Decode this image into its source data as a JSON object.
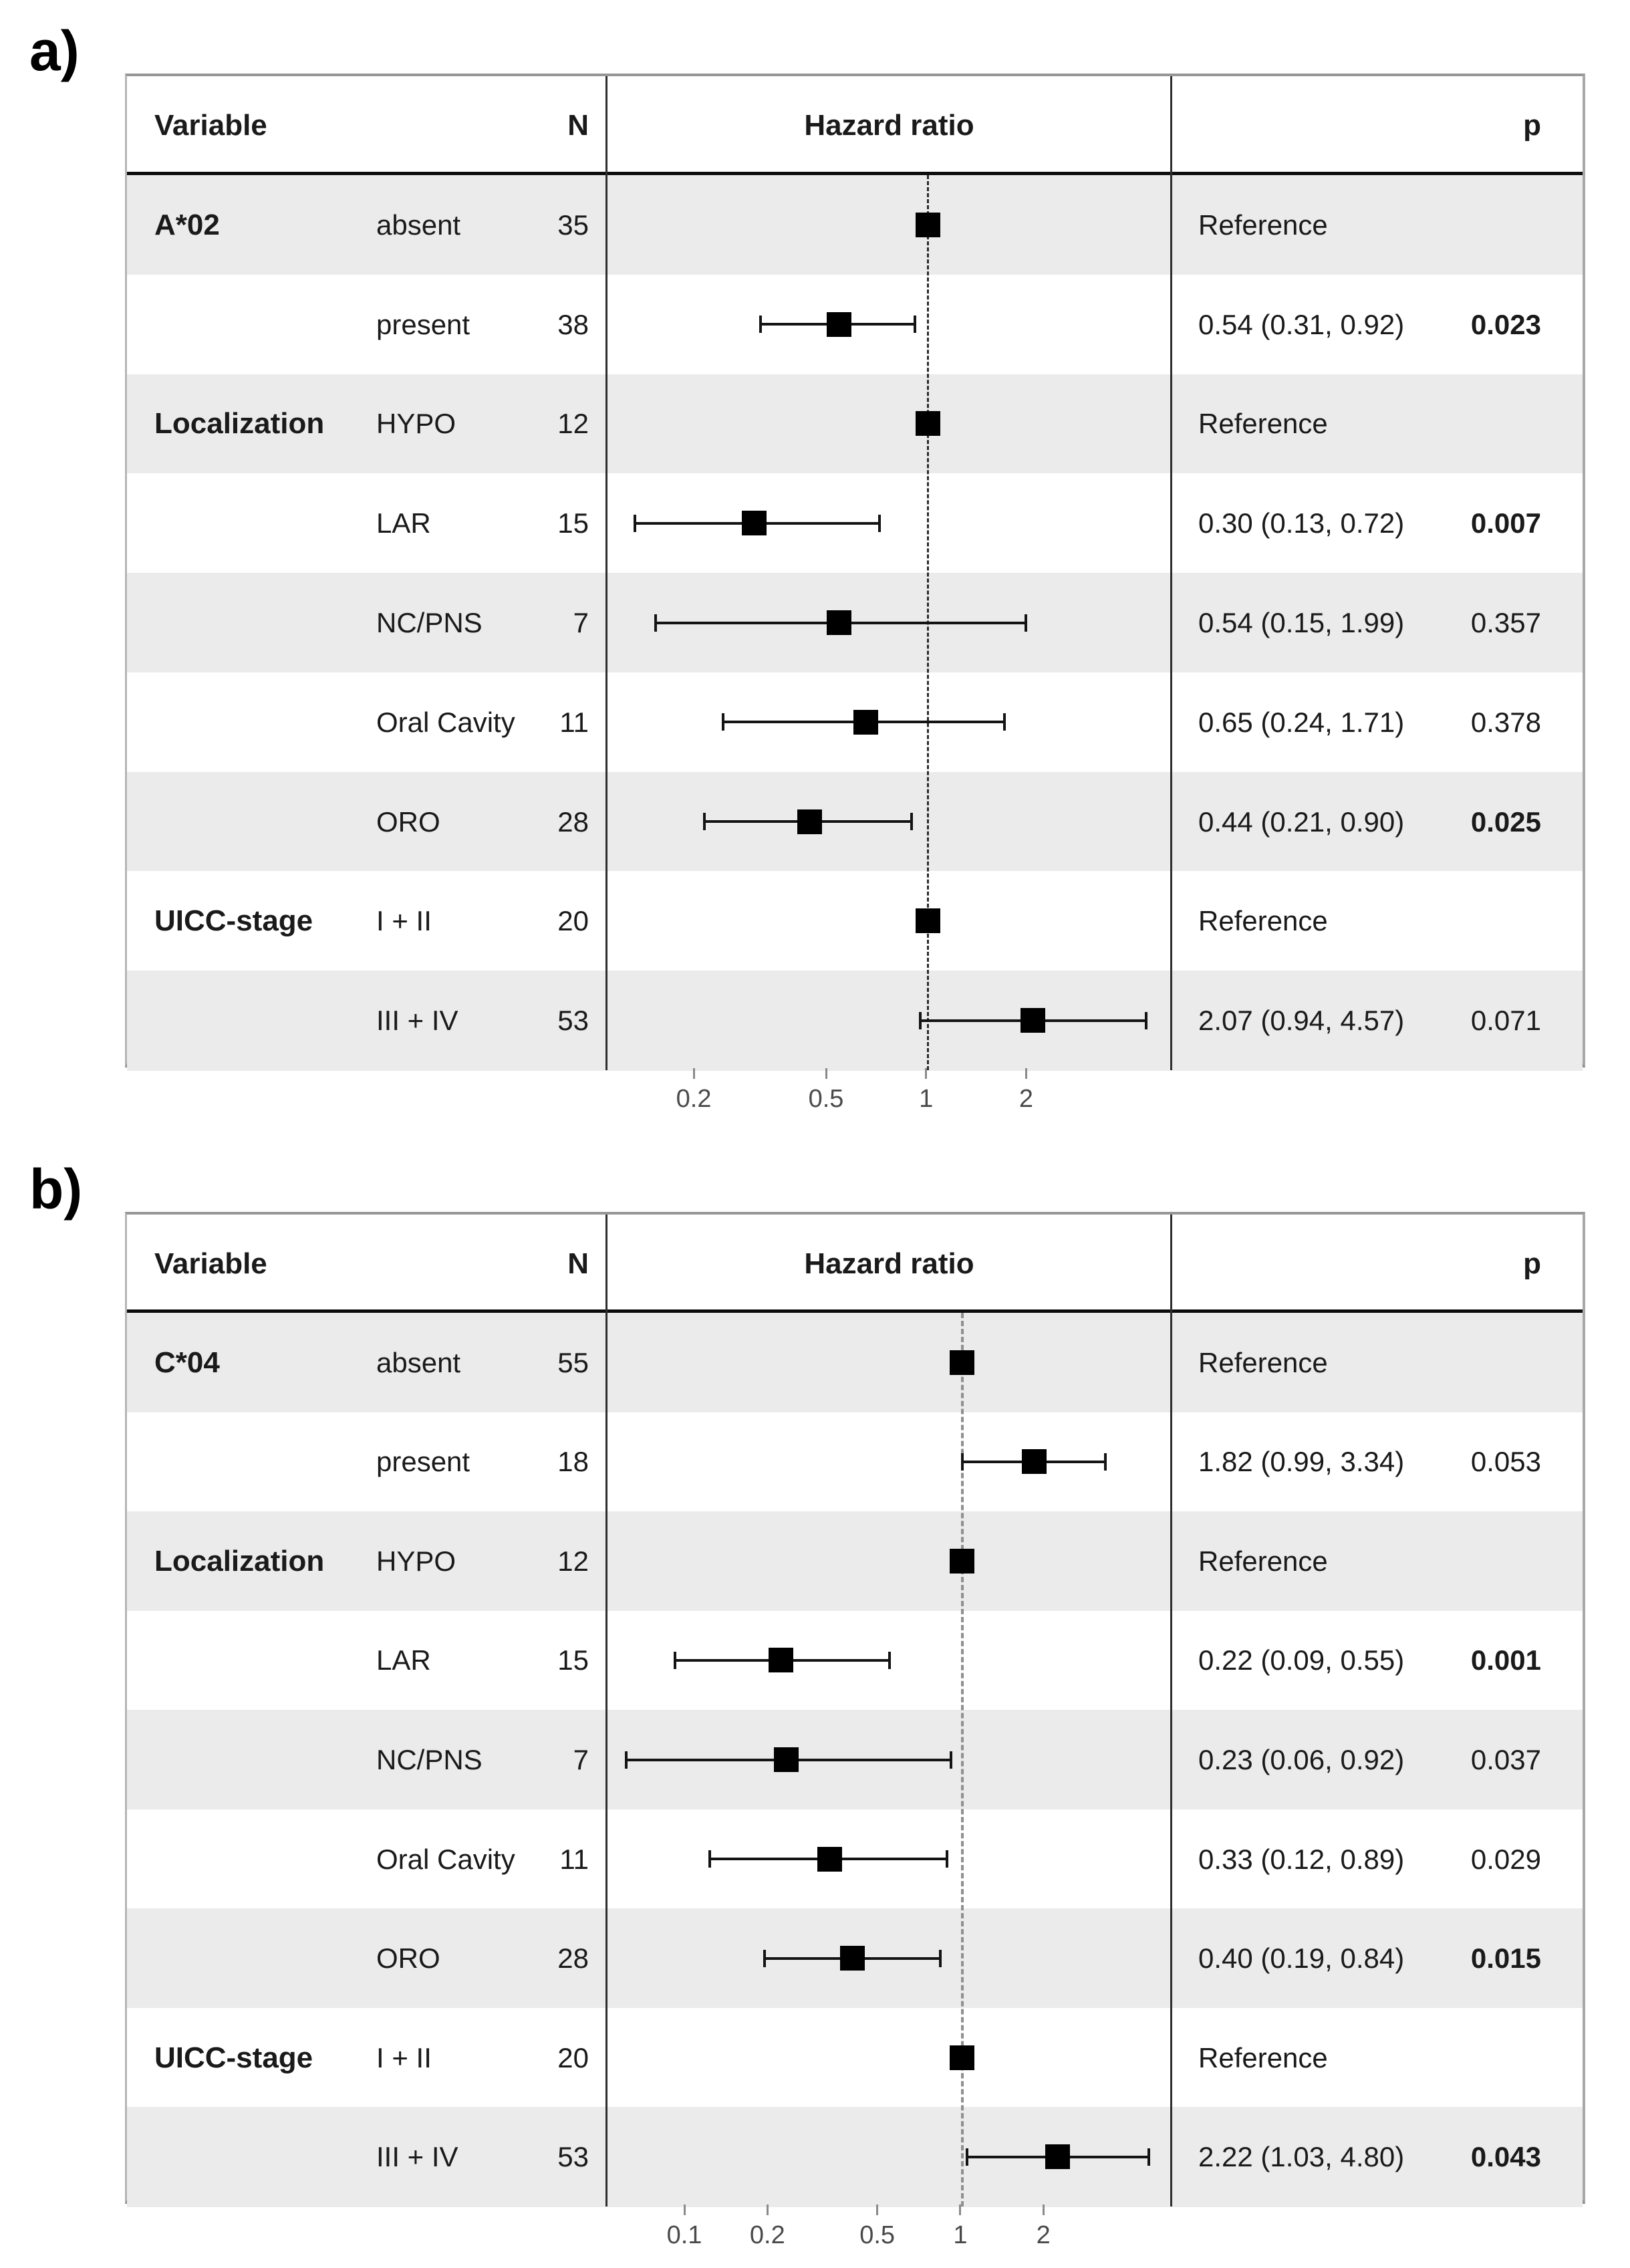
{
  "colors": {
    "stripe": "#ebebeb",
    "row_white": "#ffffff",
    "marker": "#000000",
    "error_bar": "#141414",
    "text": "#1a1a1a",
    "axis_tick": "#8a8a8a",
    "tick_label": "#4a4a4a"
  },
  "chart_data": [
    {
      "type": "forest",
      "label": "a)",
      "header": {
        "variable": "Variable",
        "n": "N",
        "hazard": "Hazard ratio",
        "p": "p"
      },
      "axis": {
        "scale": "log10",
        "xmin": 0.108,
        "xmax": 5.4,
        "tick_values": [
          0.2,
          0.5,
          1,
          2
        ],
        "tick_labels": [
          "0.2",
          "0.5",
          "1",
          "2"
        ],
        "ref_line": 1,
        "ref_line_color": "#2b2b2b",
        "ref_line_width": 3
      },
      "rows": [
        {
          "variable": "A*02",
          "level": "absent",
          "n": "35",
          "reference": true,
          "estimate_label": "Reference",
          "p": "",
          "p_bold": false
        },
        {
          "variable": "",
          "level": "present",
          "n": "38",
          "est": 0.54,
          "lo": 0.31,
          "hi": 0.92,
          "estimate_label": "0.54 (0.31, 0.92)",
          "p": "0.023",
          "p_bold": true
        },
        {
          "variable": "Localization",
          "level": "HYPO",
          "n": "12",
          "reference": true,
          "estimate_label": "Reference",
          "p": "",
          "p_bold": false
        },
        {
          "variable": "",
          "level": "LAR",
          "n": "15",
          "est": 0.3,
          "lo": 0.13,
          "hi": 0.72,
          "estimate_label": "0.30 (0.13, 0.72)",
          "p": "0.007",
          "p_bold": true
        },
        {
          "variable": "",
          "level": "NC/PNS",
          "n": "7",
          "est": 0.54,
          "lo": 0.15,
          "hi": 1.99,
          "estimate_label": "0.54 (0.15, 1.99)",
          "p": "0.357",
          "p_bold": false
        },
        {
          "variable": "",
          "level": "Oral Cavity",
          "n": "11",
          "est": 0.65,
          "lo": 0.24,
          "hi": 1.71,
          "estimate_label": "0.65 (0.24, 1.71)",
          "p": "0.378",
          "p_bold": false
        },
        {
          "variable": "",
          "level": "ORO",
          "n": "28",
          "est": 0.44,
          "lo": 0.21,
          "hi": 0.9,
          "estimate_label": "0.44 (0.21, 0.90)",
          "p": "0.025",
          "p_bold": true
        },
        {
          "variable": "UICC-stage",
          "level": "I + II",
          "n": "20",
          "reference": true,
          "estimate_label": "Reference",
          "p": "",
          "p_bold": false
        },
        {
          "variable": "",
          "level": "III + IV",
          "n": "53",
          "est": 2.07,
          "lo": 0.94,
          "hi": 4.57,
          "estimate_label": "2.07 (0.94, 4.57)",
          "p": "0.071",
          "p_bold": false
        }
      ]
    },
    {
      "type": "forest",
      "label": "b)",
      "header": {
        "variable": "Variable",
        "n": "N",
        "hazard": "Hazard ratio",
        "p": "p"
      },
      "axis": {
        "scale": "log10",
        "xmin": 0.0515,
        "xmax": 5.73,
        "tick_values": [
          0.1,
          0.2,
          0.5,
          1,
          2
        ],
        "tick_labels": [
          "0.1",
          "0.2",
          "0.5",
          "1",
          "2"
        ],
        "ref_line": 1,
        "ref_line_color": "#8f8f8f",
        "ref_line_width": 4
      },
      "rows": [
        {
          "variable": "C*04",
          "level": "absent",
          "n": "55",
          "reference": true,
          "estimate_label": "Reference",
          "p": "",
          "p_bold": false
        },
        {
          "variable": "",
          "level": "present",
          "n": "18",
          "est": 1.82,
          "lo": 0.99,
          "hi": 3.34,
          "estimate_label": "1.82 (0.99, 3.34)",
          "p": "0.053",
          "p_bold": false
        },
        {
          "variable": "Localization",
          "level": "HYPO",
          "n": "12",
          "reference": true,
          "estimate_label": "Reference",
          "p": "",
          "p_bold": false
        },
        {
          "variable": "",
          "level": "LAR",
          "n": "15",
          "est": 0.22,
          "lo": 0.09,
          "hi": 0.55,
          "estimate_label": "0.22 (0.09, 0.55)",
          "p": "0.001",
          "p_bold": true
        },
        {
          "variable": "",
          "level": "NC/PNS",
          "n": "7",
          "est": 0.23,
          "lo": 0.06,
          "hi": 0.92,
          "estimate_label": "0.23 (0.06, 0.92)",
          "p": "0.037",
          "p_bold": false
        },
        {
          "variable": "",
          "level": "Oral Cavity",
          "n": "11",
          "est": 0.33,
          "lo": 0.12,
          "hi": 0.89,
          "estimate_label": "0.33 (0.12, 0.89)",
          "p": "0.029",
          "p_bold": false
        },
        {
          "variable": "",
          "level": "ORO",
          "n": "28",
          "est": 0.4,
          "lo": 0.19,
          "hi": 0.84,
          "estimate_label": "0.40 (0.19, 0.84)",
          "p": "0.015",
          "p_bold": true
        },
        {
          "variable": "UICC-stage",
          "level": "I + II",
          "n": "20",
          "reference": true,
          "estimate_label": "Reference",
          "p": "",
          "p_bold": false
        },
        {
          "variable": "",
          "level": "III + IV",
          "n": "53",
          "est": 2.22,
          "lo": 1.03,
          "hi": 4.8,
          "estimate_label": "2.22 (1.03, 4.80)",
          "p": "0.043",
          "p_bold": true
        }
      ]
    }
  ]
}
